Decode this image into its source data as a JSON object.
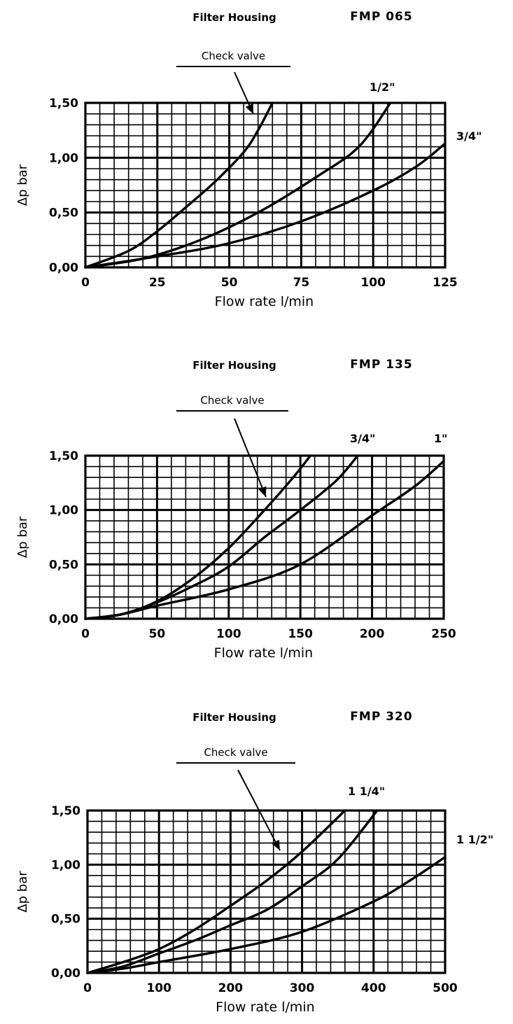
{
  "chart_data": [
    {
      "type": "line",
      "header_label": "Filter Housing",
      "header_code": "FMP 065",
      "title": "",
      "xlabel": "Flow rate l/min",
      "ylabel": "Δp bar",
      "xlim": [
        0,
        125
      ],
      "ylim": [
        0,
        1.5
      ],
      "x_ticks": [
        0,
        25,
        50,
        75,
        100,
        125
      ],
      "x_tick_labels": [
        "0",
        "25",
        "50",
        "75",
        "100",
        "125"
      ],
      "y_ticks": [
        0,
        0.5,
        1.0,
        1.5
      ],
      "y_tick_labels": [
        "0,00",
        "0,50",
        "1,00",
        "1,50"
      ],
      "grid": true,
      "annotation": "Check valve",
      "series": [
        {
          "values": [
            [
              0,
              0
            ],
            [
              15,
              0.15
            ],
            [
              25,
              0.33
            ],
            [
              35,
              0.55
            ],
            [
              45,
              0.78
            ],
            [
              55,
              1.05
            ],
            [
              60,
              1.25
            ],
            [
              65,
              1.5
            ]
          ]
        },
        {
          "name": "1/2\"",
          "values": [
            [
              0,
              0
            ],
            [
              20,
              0.08
            ],
            [
              40,
              0.25
            ],
            [
              60,
              0.5
            ],
            [
              80,
              0.82
            ],
            [
              95,
              1.1
            ],
            [
              106,
              1.5
            ]
          ]
        },
        {
          "name": "3/4\"",
          "values": [
            [
              0,
              0
            ],
            [
              25,
              0.1
            ],
            [
              50,
              0.22
            ],
            [
              75,
              0.42
            ],
            [
              100,
              0.7
            ],
            [
              115,
              0.92
            ],
            [
              125,
              1.13
            ]
          ]
        }
      ]
    },
    {
      "type": "line",
      "header_label": "Filter Housing",
      "header_code": "FMP 135",
      "title": "",
      "xlabel": "Flow rate l/min",
      "ylabel": "Δp bar",
      "xlim": [
        0,
        250
      ],
      "ylim": [
        0,
        1.5
      ],
      "x_ticks": [
        0,
        50,
        100,
        150,
        200,
        250
      ],
      "x_tick_labels": [
        "0",
        "50",
        "100",
        "150",
        "200",
        "250"
      ],
      "y_ticks": [
        0,
        0.5,
        1.0,
        1.5
      ],
      "y_tick_labels": [
        "0,00",
        "0,50",
        "1,00",
        "1,50"
      ],
      "grid": true,
      "annotation": "Check valve",
      "series": [
        {
          "values": [
            [
              0,
              0
            ],
            [
              25,
              0.04
            ],
            [
              50,
              0.16
            ],
            [
              75,
              0.37
            ],
            [
              100,
              0.65
            ],
            [
              125,
              1.0
            ],
            [
              145,
              1.3
            ],
            [
              157,
              1.5
            ]
          ]
        },
        {
          "name": "3/4\"",
          "values": [
            [
              0,
              0
            ],
            [
              25,
              0.04
            ],
            [
              50,
              0.15
            ],
            [
              75,
              0.3
            ],
            [
              100,
              0.48
            ],
            [
              125,
              0.75
            ],
            [
              150,
              1.0
            ],
            [
              175,
              1.27
            ],
            [
              190,
              1.5
            ]
          ]
        },
        {
          "name": "1\"",
          "values": [
            [
              0,
              0
            ],
            [
              25,
              0.04
            ],
            [
              50,
              0.12
            ],
            [
              100,
              0.27
            ],
            [
              150,
              0.5
            ],
            [
              200,
              0.95
            ],
            [
              230,
              1.22
            ],
            [
              250,
              1.45
            ]
          ]
        }
      ]
    },
    {
      "type": "line",
      "header_label": "Filter Housing",
      "header_code": "FMP 320",
      "title": "",
      "xlabel": "Flow rate l/min",
      "ylabel": "Δp bar",
      "xlim": [
        0,
        500
      ],
      "ylim": [
        0,
        1.5
      ],
      "x_ticks": [
        0,
        100,
        200,
        300,
        400,
        500
      ],
      "x_tick_labels": [
        "0",
        "100",
        "200",
        "300",
        "400",
        "500"
      ],
      "y_ticks": [
        0,
        0.5,
        1.0,
        1.5
      ],
      "y_tick_labels": [
        "0,00",
        "0,50",
        "1,00",
        "1,50"
      ],
      "grid": true,
      "annotation": "Check valve",
      "series": [
        {
          "values": [
            [
              0,
              0
            ],
            [
              50,
              0.1
            ],
            [
              100,
              0.22
            ],
            [
              150,
              0.4
            ],
            [
              200,
              0.62
            ],
            [
              250,
              0.85
            ],
            [
              300,
              1.12
            ],
            [
              360,
              1.5
            ]
          ]
        },
        {
          "name": "1 1/4\"",
          "values": [
            [
              0,
              0
            ],
            [
              50,
              0.06
            ],
            [
              100,
              0.18
            ],
            [
              150,
              0.3
            ],
            [
              200,
              0.44
            ],
            [
              250,
              0.58
            ],
            [
              300,
              0.8
            ],
            [
              350,
              1.05
            ],
            [
              405,
              1.5
            ]
          ]
        },
        {
          "name": "1 1/2\"",
          "values": [
            [
              0,
              0
            ],
            [
              50,
              0.04
            ],
            [
              100,
              0.1
            ],
            [
              200,
              0.22
            ],
            [
              300,
              0.38
            ],
            [
              400,
              0.66
            ],
            [
              450,
              0.85
            ],
            [
              500,
              1.07
            ]
          ]
        }
      ]
    }
  ]
}
